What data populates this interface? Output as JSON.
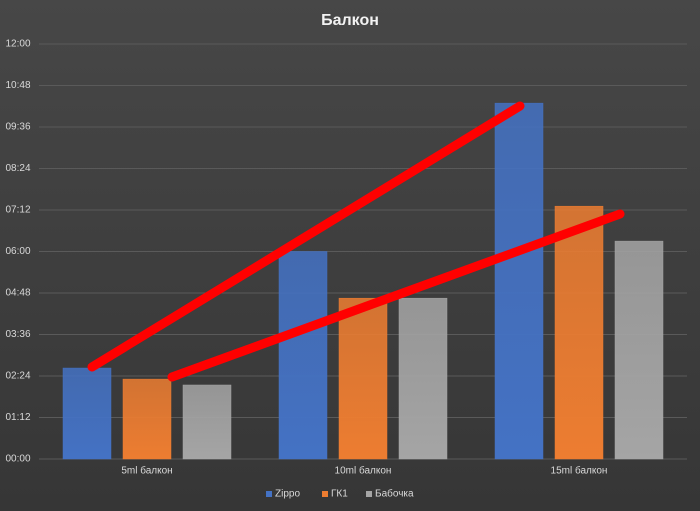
{
  "chart_data": {
    "type": "bar",
    "title": "Балкон",
    "categories": [
      "5ml балкон",
      "10ml балкон",
      "15ml балкон"
    ],
    "series": [
      {
        "name": "Zippo",
        "color": "#4472c4",
        "values": [
          2.63,
          6.0,
          10.29
        ]
      },
      {
        "name": "ГК1",
        "color": "#ed7d31",
        "values": [
          2.31,
          4.65,
          7.31
        ]
      },
      {
        "name": "Бабочка",
        "color": "#a5a5a5",
        "values": [
          2.14,
          4.65,
          6.3
        ]
      }
    ],
    "ylim": [
      0,
      12
    ],
    "yticks": [
      {
        "value": 0,
        "label": "00:00"
      },
      {
        "value": 1.2,
        "label": "01:12"
      },
      {
        "value": 2.4,
        "label": "02:24"
      },
      {
        "value": 3.6,
        "label": "03:36"
      },
      {
        "value": 4.8,
        "label": "04:48"
      },
      {
        "value": 6,
        "label": "06:00"
      },
      {
        "value": 7.2,
        "label": "07:12"
      },
      {
        "value": 8.4,
        "label": "08:24"
      },
      {
        "value": 9.6,
        "label": "09:36"
      },
      {
        "value": 10.8,
        "label": "10:48"
      },
      {
        "value": 12,
        "label": "12:00"
      }
    ],
    "grid": true
  }
}
